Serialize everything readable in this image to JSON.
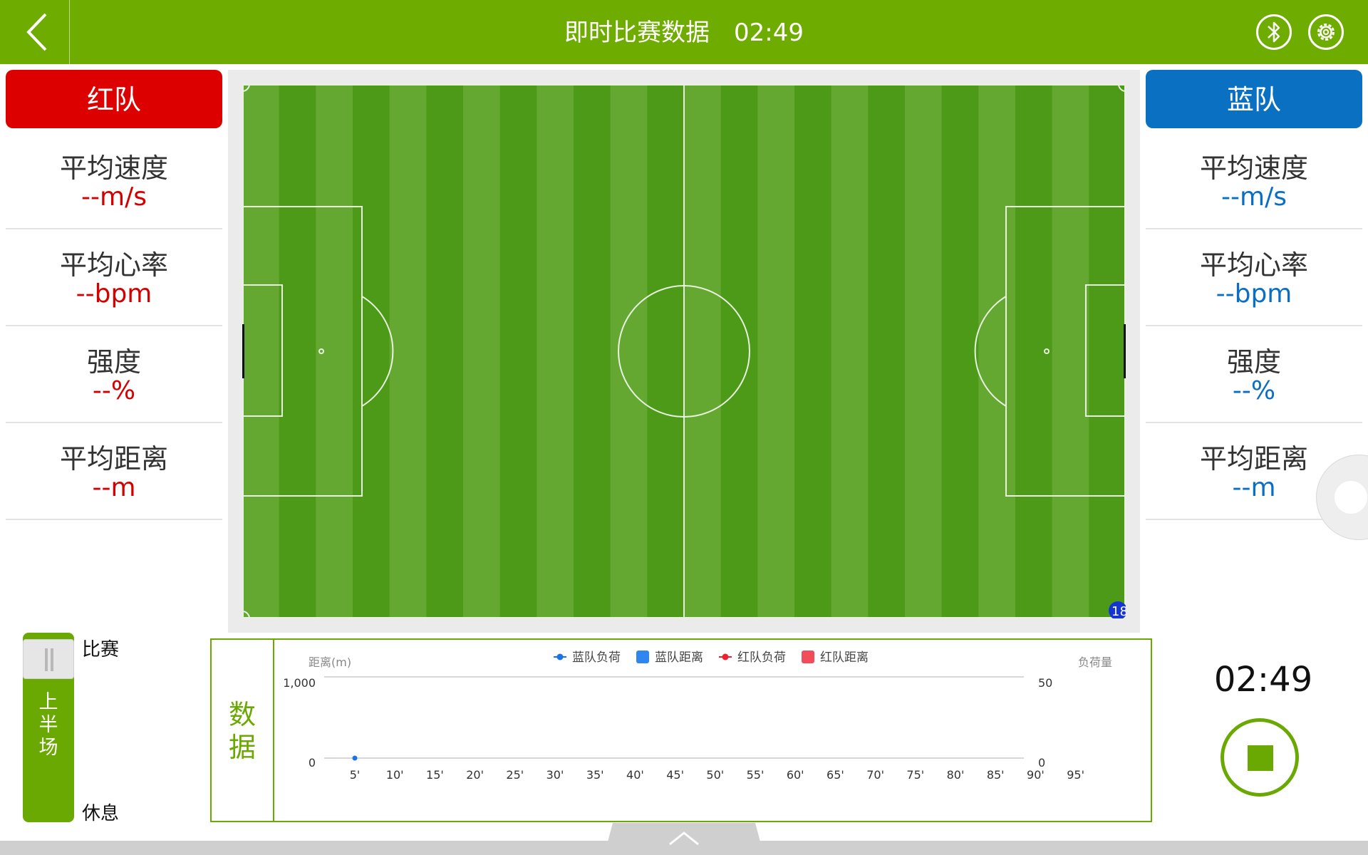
{
  "header": {
    "title": "即时比赛数据",
    "clock": "02:49",
    "icons": {
      "back": "chevron-left-icon",
      "bluetooth": "bluetooth-icon",
      "settings": "gear-icon"
    }
  },
  "colors": {
    "brand_green": "#6fac00",
    "red_team": "#dc0000",
    "blue_team": "#0a71c2",
    "pitch_light": "#64a832",
    "pitch_dark": "#4c9a17"
  },
  "red_team": {
    "name": "红队",
    "stats": [
      {
        "label": "平均速度",
        "value": "--m/s"
      },
      {
        "label": "平均心率",
        "value": "--bpm"
      },
      {
        "label": "强度",
        "value": "--%"
      },
      {
        "label": "平均距离",
        "value": "--m"
      }
    ]
  },
  "blue_team": {
    "name": "蓝队",
    "stats": [
      {
        "label": "平均速度",
        "value": "--m/s"
      },
      {
        "label": "平均心率",
        "value": "--bpm"
      },
      {
        "label": "强度",
        "value": "--%"
      },
      {
        "label": "平均距离",
        "value": "--m"
      }
    ]
  },
  "field": {
    "player_marker": "18"
  },
  "half_switch": {
    "top_label": "比赛",
    "bottom_label": "休息",
    "current": [
      "上",
      "半",
      "场"
    ]
  },
  "data_panel": {
    "tab_label": [
      "数",
      "据"
    ],
    "chart_data": {
      "type": "line",
      "title": "",
      "y_left_label": "距离(m)",
      "y_right_label": "负荷量",
      "y_left_range": [
        0,
        1000
      ],
      "y_left_ticks": [
        "1,000",
        "0"
      ],
      "y_right_range": [
        0,
        50
      ],
      "y_right_ticks": [
        "50",
        "0"
      ],
      "x_ticks": [
        "5'",
        "10'",
        "15'",
        "20'",
        "25'",
        "30'",
        "35'",
        "40'",
        "45'",
        "50'",
        "55'",
        "60'",
        "65'",
        "70'",
        "75'",
        "80'",
        "85'",
        "90'",
        "95'"
      ],
      "legend": [
        {
          "name": "蓝队负荷",
          "marker": "line-dot",
          "color": "#1a73e8"
        },
        {
          "name": "蓝队距离",
          "marker": "square",
          "color": "#2f86f0"
        },
        {
          "name": "红队负荷",
          "marker": "line-dot",
          "color": "#e8222e"
        },
        {
          "name": "红队距离",
          "marker": "square",
          "color": "#f04c5a"
        }
      ],
      "legend_position": "top-center",
      "series": [
        {
          "name": "蓝队负荷",
          "axis": "right",
          "points": [
            {
              "x": "5'",
              "y": 0
            }
          ]
        }
      ]
    }
  },
  "timer": "02:49"
}
